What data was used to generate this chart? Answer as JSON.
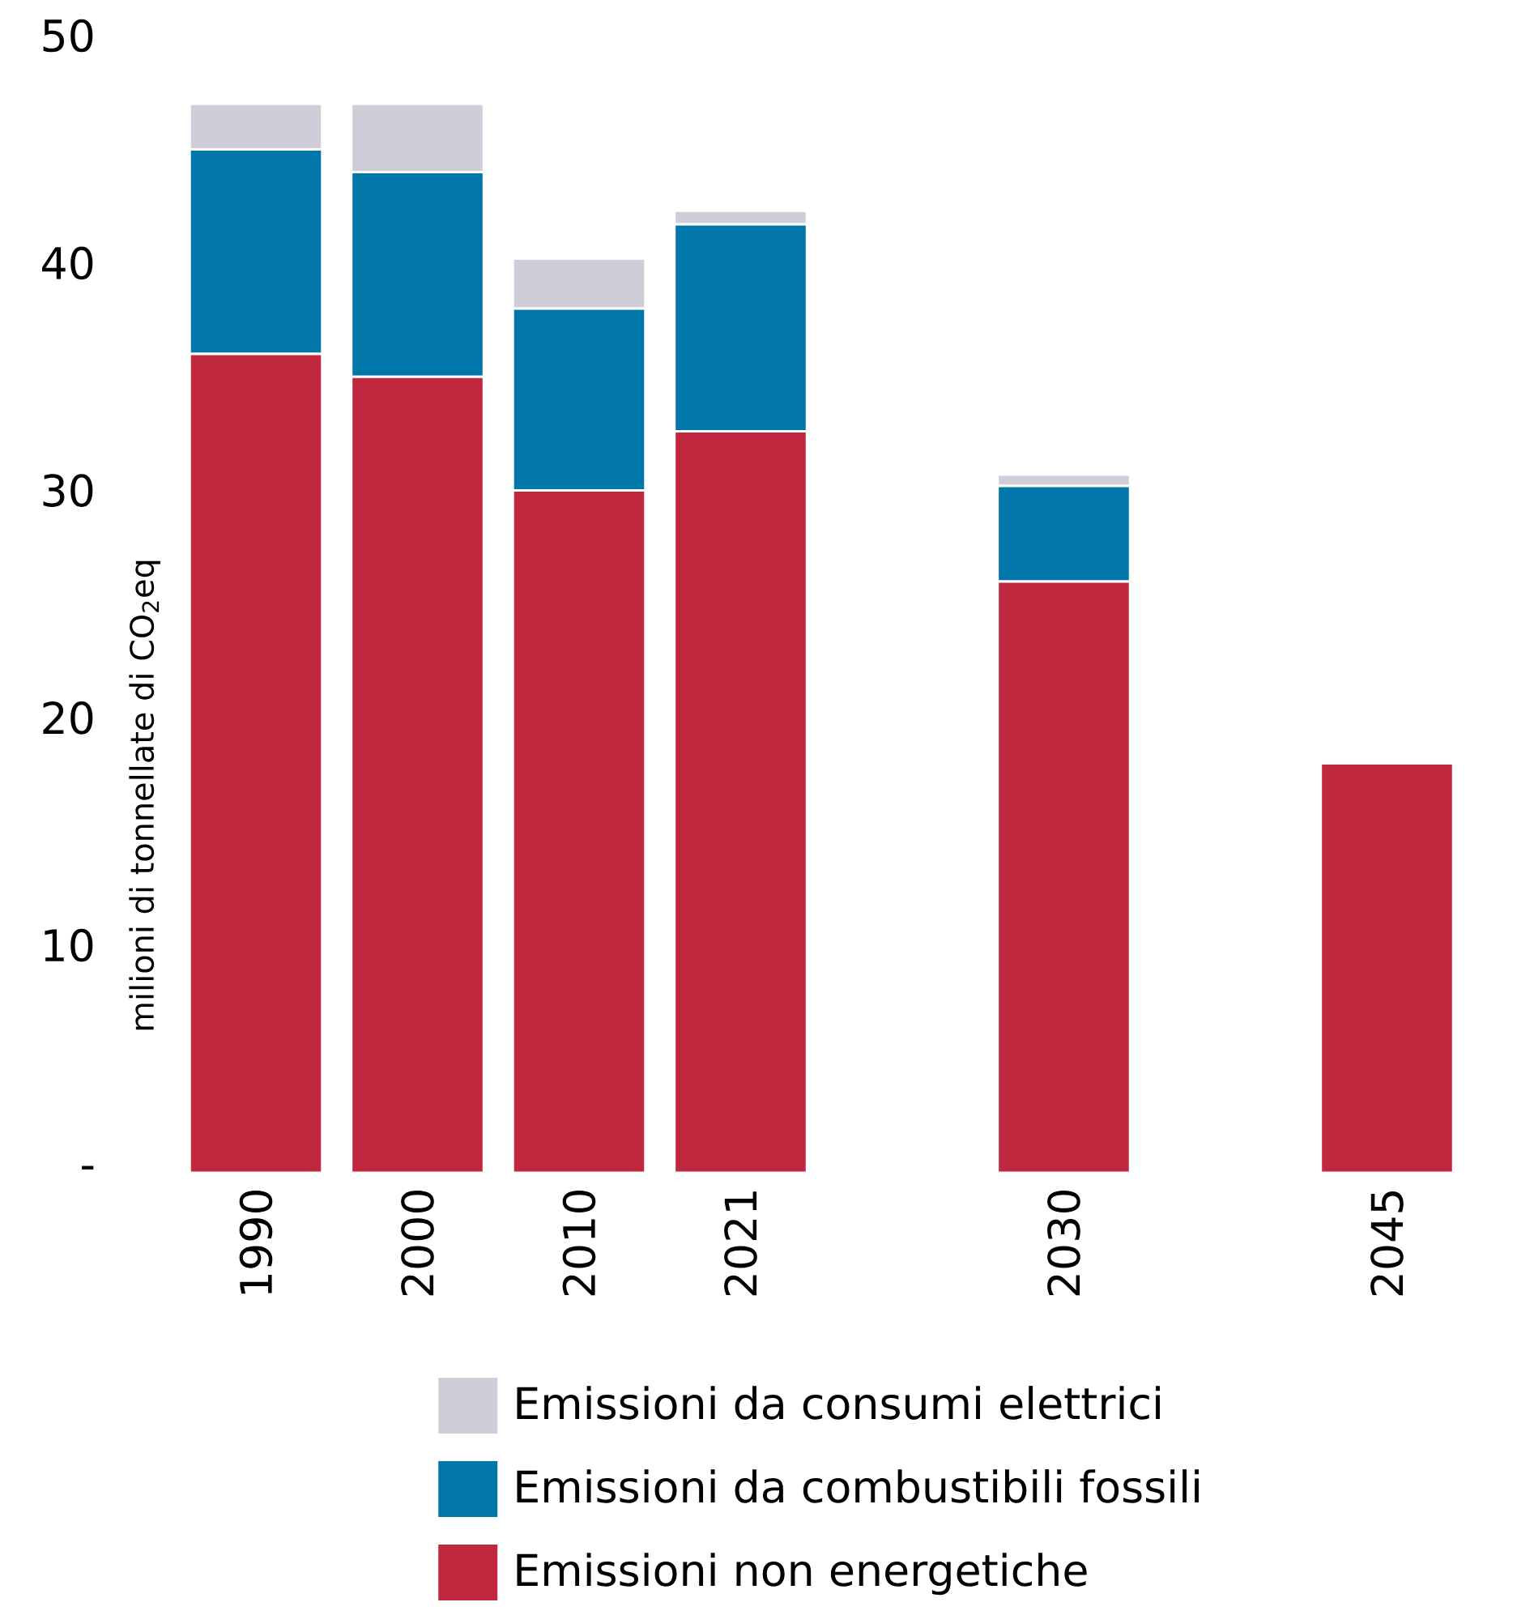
{
  "chart_data": {
    "type": "bar",
    "stacked": true,
    "ylabel": "milioni di tonnellate di CO$_{2}$eq",
    "categories": [
      "1990",
      "2000",
      "2010",
      "2021",
      null,
      "2030",
      null,
      "2045"
    ],
    "series": [
      {
        "name": "Emissioni non energetiche",
        "color": "#c0283f",
        "values": [
          36,
          35,
          30,
          32.6,
          null,
          26,
          null,
          18
        ]
      },
      {
        "name": "Emissioni da combustibili fossili",
        "color": "#0077a8",
        "values": [
          9,
          9,
          8,
          9.1,
          null,
          4.2,
          null,
          0
        ]
      },
      {
        "name": "Emissioni da consumi elettrici",
        "color": "#cfcdd8",
        "values": [
          2,
          3,
          2.2,
          0.6,
          null,
          0.5,
          null,
          0
        ]
      }
    ],
    "ylim": [
      0,
      50
    ],
    "yticks": [
      {
        "value": 0,
        "label": "-"
      },
      10,
      20,
      30,
      40,
      50
    ],
    "grid": false,
    "legend": "bottom"
  }
}
